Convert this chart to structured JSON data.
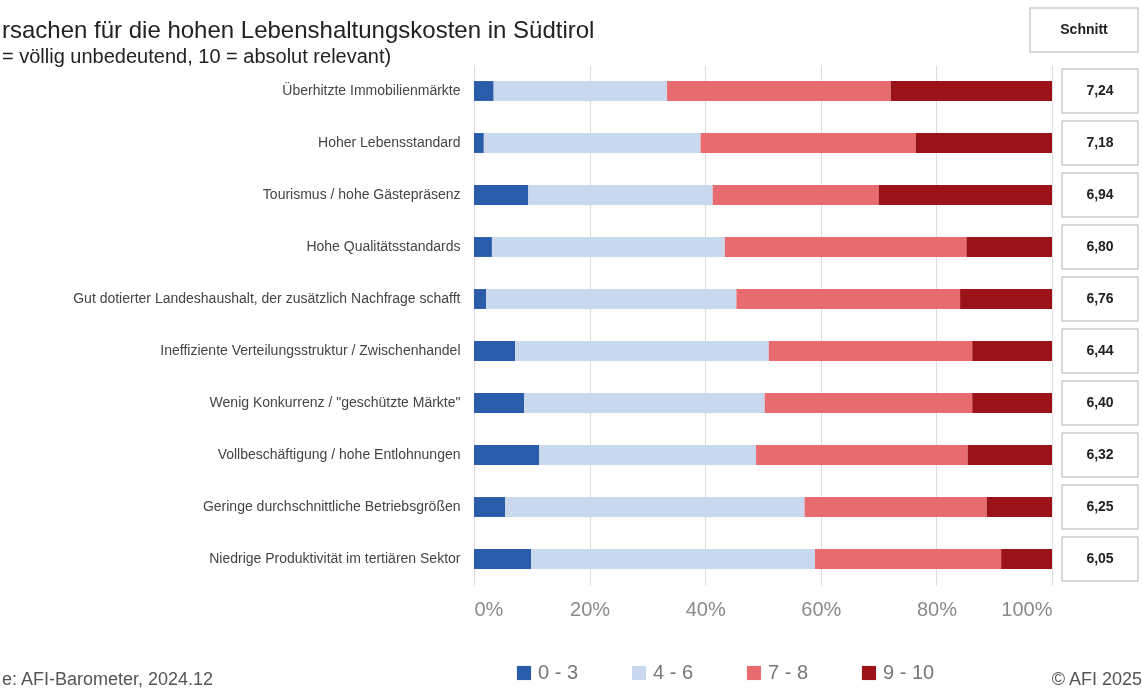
{
  "chart_data": {
    "type": "bar",
    "orientation": "horizontal",
    "stacked": true,
    "title": "rsachen für die hohen Lebenshaltungskosten in Südtirol",
    "subtitle": "= völlig unbedeutend, 10 = absolut relevant)",
    "categories": [
      "Überhitzte Immobilienmärkte",
      "Hoher Lebensstandard",
      "Tourismus / hohe Gästepräsenz",
      "Hohe Qualitätsstandards",
      "Gut dotierter Landeshaushalt, der zusätzlich Nachfrage schafft",
      "Ineffiziente Verteilungsstruktur / Zwischenhandel",
      "Wenig Konkurrenz / \"geschützte Märkte\"",
      "Vollbeschäftigung / hohe Entlohnungen",
      "Geringe durchschnittliche Betriebsgrößen",
      "Niedrige Produktivität im tertiären Sektor"
    ],
    "series": [
      {
        "name": "0 - 3",
        "color": "#2a5caa",
        "values": [
          3.4,
          1.7,
          9.4,
          3.1,
          2.1,
          7.1,
          8.7,
          11.3,
          5.4,
          9.9
        ]
      },
      {
        "name": "4 - 6",
        "color": "#c9d8ec",
        "values": [
          30.0,
          37.5,
          31.9,
          40.3,
          43.3,
          43.9,
          41.6,
          37.5,
          51.8,
          49.1
        ]
      },
      {
        "name": "7 - 8",
        "color": "#e86b70",
        "values": [
          38.7,
          37.2,
          28.7,
          41.8,
          38.7,
          35.2,
          35.9,
          36.6,
          31.5,
          32.2
        ]
      },
      {
        "name": "9 - 10",
        "color": "#9b1219",
        "values": [
          27.9,
          23.6,
          30.0,
          14.8,
          15.9,
          13.8,
          13.8,
          14.6,
          11.3,
          8.8
        ]
      }
    ],
    "xlim": [
      0,
      100
    ],
    "xticks": [
      {
        "value": 0,
        "label": "0%"
      },
      {
        "value": 20,
        "label": "20%"
      },
      {
        "value": 40,
        "label": "40%"
      },
      {
        "value": 60,
        "label": "60%"
      },
      {
        "value": 80,
        "label": "80%"
      },
      {
        "value": 100,
        "label": "100%"
      }
    ],
    "grid": "x",
    "legend": "bottom",
    "annotations": [
      "Schnitt",
      "7,24",
      "7,18",
      "6,94",
      "6,80",
      "6,76",
      "6,44",
      "6,40",
      "6,32",
      "6,25",
      "6,05",
      "e: AFI-Barometer, 2024.12",
      "© AFI 2025"
    ]
  }
}
